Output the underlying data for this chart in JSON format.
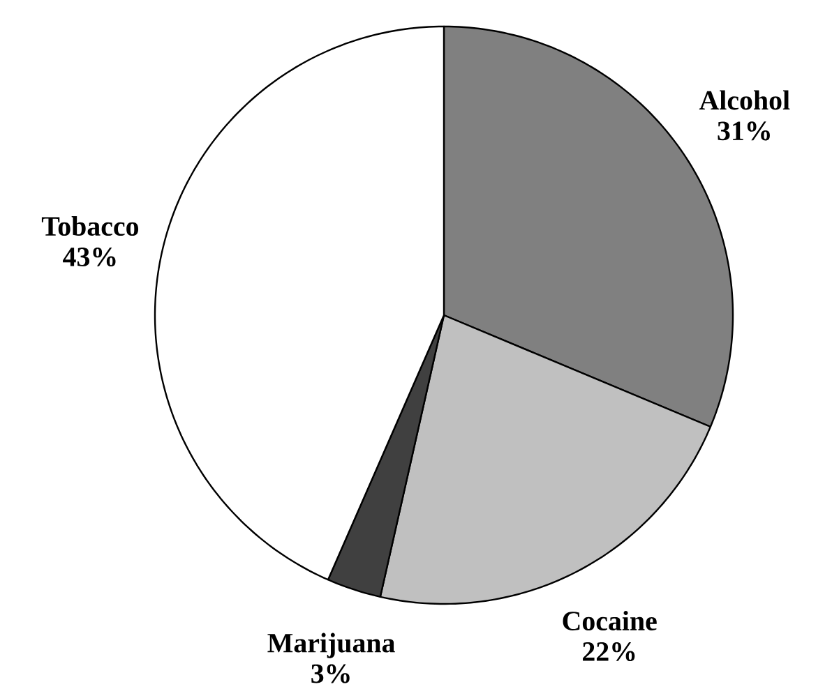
{
  "chart_data": {
    "type": "pie",
    "categories": [
      "Alcohol",
      "Cocaine",
      "Marijuana",
      "Tobacco"
    ],
    "values": [
      31,
      22,
      3,
      43
    ],
    "value_labels": [
      "31%",
      "22%",
      "3%",
      "43%"
    ],
    "colors": [
      "#808080",
      "#c0c0c0",
      "#404040",
      "#ffffff"
    ]
  }
}
